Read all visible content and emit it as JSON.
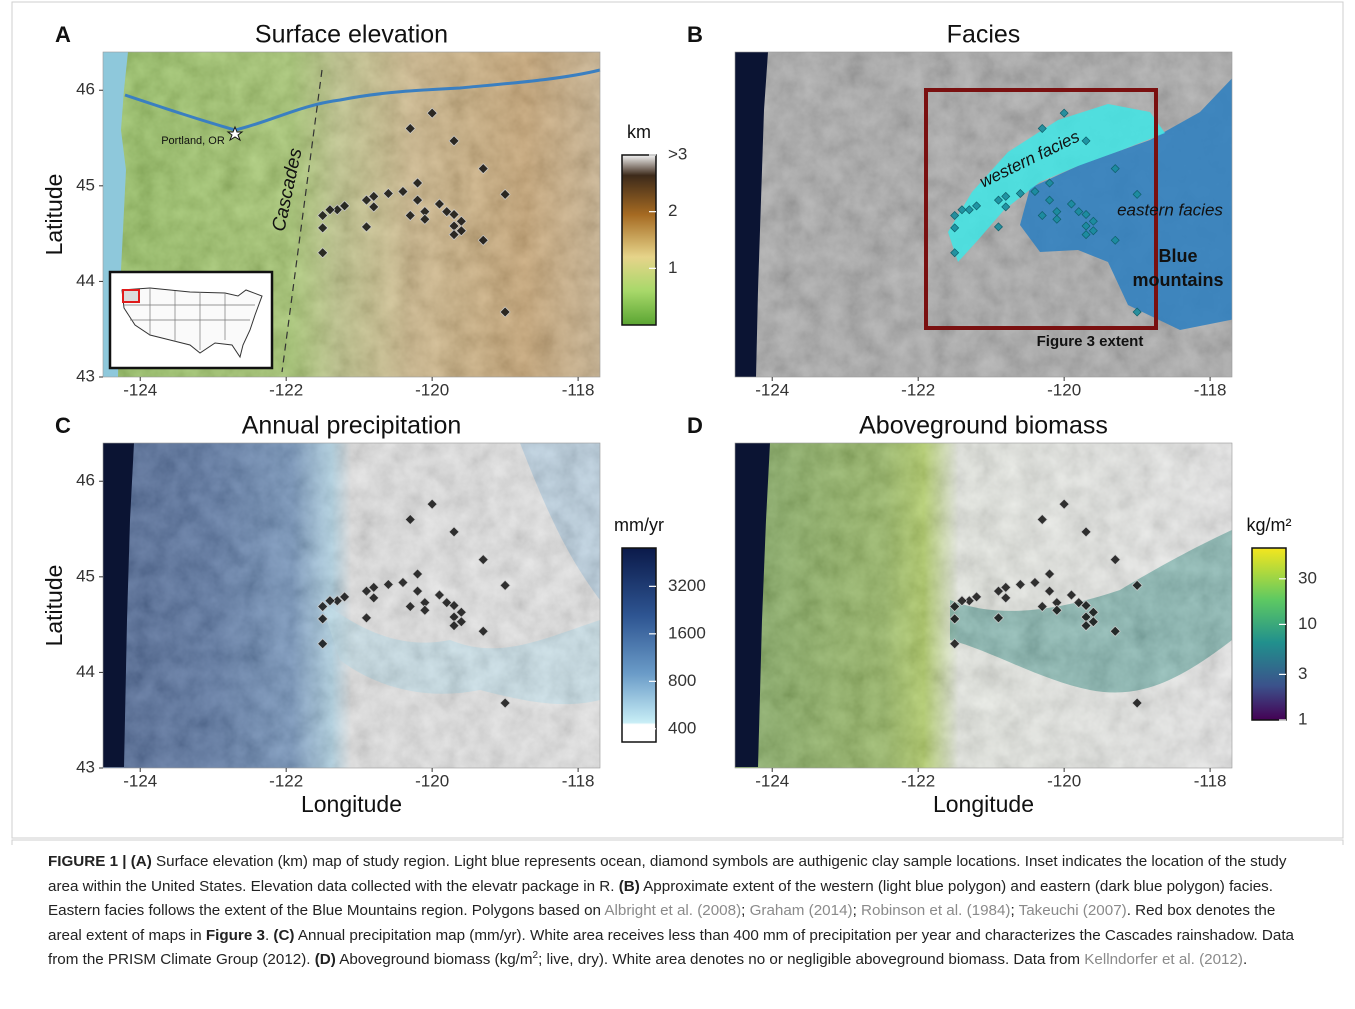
{
  "panels": [
    {
      "letter": "A",
      "title": "Surface elevation",
      "legend": {
        "title": "km",
        "scale": "linear",
        "lim": [
          0,
          3
        ],
        "ticks": [
          {
            "value": 3,
            "label": ">3"
          },
          2,
          1
        ]
      }
    },
    {
      "letter": "B",
      "title": "Facies"
    },
    {
      "letter": "C",
      "title": "Annual precipitation",
      "legend": {
        "title": "mm/yr",
        "scale": "log",
        "lim": [
          330,
          5600
        ],
        "ticks": [
          3200,
          1600,
          800,
          400
        ]
      }
    },
    {
      "letter": "D",
      "title": "Aboveground biomass",
      "legend": {
        "title": "kg/m²",
        "scale": "log",
        "lim": [
          1,
          63
        ],
        "ticks": [
          30,
          10,
          3,
          1
        ]
      }
    }
  ],
  "annotations": {
    "portland": "Portland, OR",
    "cascades": "Cascades",
    "western": "western facies",
    "eastern": "eastern facies",
    "blue_1": "Blue",
    "blue_2": "mountains",
    "extent": "Figure 3 extent"
  },
  "axes": {
    "xlim": [
      -124.51,
      -117.7
    ],
    "ylim": [
      43,
      46.4
    ],
    "xticks": [
      -124,
      -122,
      -120,
      -118
    ],
    "yticks": [
      46,
      45,
      44,
      43
    ],
    "xlabel": "Longitude",
    "ylabel": "Latitude"
  },
  "samples": {
    "lon": [
      -120.0,
      -120.3,
      -119.7,
      -119.3,
      -119.0,
      -120.2,
      -120.4,
      -120.6,
      -120.8,
      -120.9,
      -120.8,
      -121.2,
      -121.3,
      -121.4,
      -121.5,
      -121.5,
      -121.5,
      -120.9,
      -120.3,
      -120.2,
      -120.1,
      -120.1,
      -119.9,
      -119.8,
      -119.7,
      -119.6,
      -119.7,
      -119.6,
      -119.7,
      -119.3,
      -119.0
    ],
    "lat": [
      45.76,
      45.6,
      45.47,
      45.18,
      44.91,
      45.03,
      44.94,
      44.92,
      44.89,
      44.85,
      44.78,
      44.79,
      44.75,
      44.75,
      44.69,
      44.56,
      44.3,
      44.57,
      44.69,
      44.85,
      44.73,
      44.65,
      44.81,
      44.73,
      44.7,
      44.63,
      44.58,
      44.53,
      44.49,
      44.43,
      43.68
    ]
  },
  "caption": [
    {
      "text": "FIGURE 1 | (A)",
      "style": "bold"
    },
    {
      "text": " Surface elevation (km) map of study region. Light blue represents ocean, diamond symbols are authigenic clay sample locations. Inset indicates the location of the study area within the United States. Elevation data collected with the elevatr package in R. ",
      "style": "plain"
    },
    {
      "text": "(B)",
      "style": "bold"
    },
    {
      "text": " Approximate extent of the western (light blue polygon) and eastern (dark blue polygon) facies. Eastern facies follows the extent of the Blue Mountains region. Polygons based on ",
      "style": "plain"
    },
    {
      "text": "Albright et al. (2008)",
      "style": "cite"
    },
    {
      "text": "; ",
      "style": "plain"
    },
    {
      "text": "Graham (2014)",
      "style": "cite"
    },
    {
      "text": "; ",
      "style": "plain"
    },
    {
      "text": "Robinson et al. (1984)",
      "style": "cite"
    },
    {
      "text": "; ",
      "style": "plain"
    },
    {
      "text": "Takeuchi (2007)",
      "style": "cite"
    },
    {
      "text": ". Red box denotes the areal extent of maps in ",
      "style": "plain"
    },
    {
      "text": "Figure 3",
      "style": "bold"
    },
    {
      "text": ". ",
      "style": "plain"
    },
    {
      "text": "(C)",
      "style": "bold"
    },
    {
      "text": " Annual precipitation map (mm/yr). White area receives less than 400 mm of precipitation per year and characterizes the Cascades rainshadow. Data from the PRISM Climate Group (2012). ",
      "style": "plain"
    },
    {
      "text": "(D)",
      "style": "bold"
    },
    {
      "text": " Aboveground biomass (kg/m",
      "style": "plain"
    },
    {
      "text": "2",
      "style": "sup"
    },
    {
      "text": "; live, dry). White area denotes no or negligible aboveground biomass. Data from ",
      "style": "plain"
    },
    {
      "text": "Kellndorfer et al. (2012)",
      "style": "cite"
    },
    {
      "text": ".",
      "style": "plain"
    }
  ]
}
